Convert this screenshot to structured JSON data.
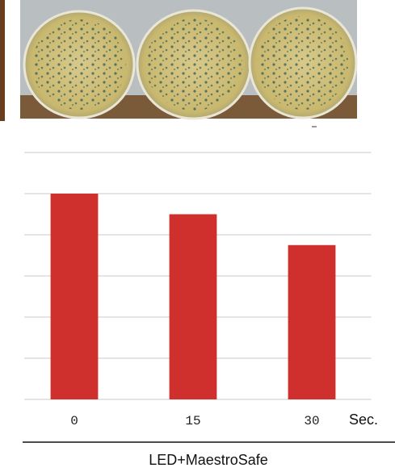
{
  "chart_data": {
    "type": "bar",
    "categories": [
      "0",
      "15",
      "30"
    ],
    "values": [
      5.0,
      4.5,
      3.75
    ],
    "color": "#d0302d",
    "ylim": [
      0,
      6
    ],
    "yticks": [
      0,
      1,
      2,
      3,
      4,
      5,
      6
    ],
    "grid": true,
    "x_unit": "Sec.",
    "xlabel": "LED+MaestroSafe"
  }
}
